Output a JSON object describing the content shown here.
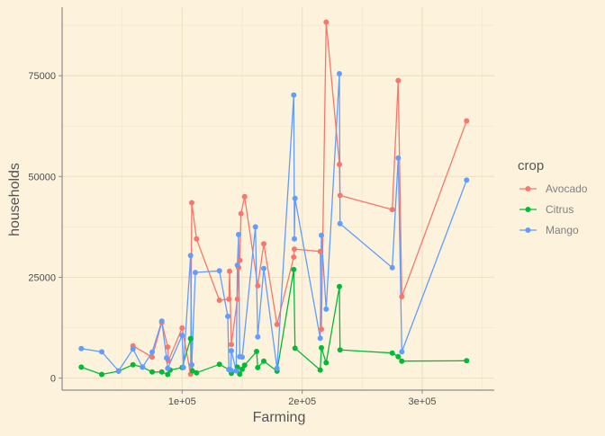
{
  "chart_data": {
    "type": "line",
    "title": "",
    "xlabel": "Farming",
    "ylabel": "households",
    "xlim": [
      0,
      360000
    ],
    "ylim": [
      -3000,
      92000
    ],
    "x_ticks": [
      100000,
      200000,
      300000
    ],
    "x_tick_labels": [
      "1e+05",
      "2e+05",
      "3e+05"
    ],
    "y_ticks": [
      0,
      25000,
      50000,
      75000
    ],
    "y_tick_labels": [
      "0",
      "25000",
      "50000",
      "75000"
    ],
    "grid": true,
    "legend": {
      "title": "crop",
      "position": "right"
    },
    "series": [
      {
        "name": "Avocado",
        "color": "#f8766d",
        "points": [
          [
            59000,
            8000
          ],
          [
            75000,
            5200
          ],
          [
            83000,
            13800
          ],
          [
            88000,
            7700
          ],
          [
            88500,
            4300
          ],
          [
            100000,
            12400
          ],
          [
            107000,
            1000
          ],
          [
            108000,
            43500
          ],
          [
            112000,
            34500
          ],
          [
            131000,
            19300
          ],
          [
            139000,
            19600
          ],
          [
            139500,
            26500
          ],
          [
            141000,
            8300
          ],
          [
            146000,
            19600
          ],
          [
            147000,
            27400
          ],
          [
            148000,
            29200
          ],
          [
            149000,
            40800
          ],
          [
            152000,
            45000
          ],
          [
            163000,
            22900
          ],
          [
            168000,
            33300
          ],
          [
            179000,
            13300
          ],
          [
            193000,
            30000
          ],
          [
            193500,
            32000
          ],
          [
            215000,
            31400
          ],
          [
            216000,
            12100
          ],
          [
            220000,
            88300
          ],
          [
            231000,
            53000
          ],
          [
            231500,
            45300
          ],
          [
            275000,
            41800
          ],
          [
            280000,
            73800
          ],
          [
            283000,
            20200
          ],
          [
            337000,
            63800
          ]
        ]
      },
      {
        "name": "Citrus",
        "color": "#00ba38",
        "points": [
          [
            16000,
            2700
          ],
          [
            33000,
            900
          ],
          [
            47000,
            1700
          ],
          [
            59000,
            3300
          ],
          [
            67000,
            2700
          ],
          [
            75000,
            1500
          ],
          [
            83000,
            1500
          ],
          [
            88000,
            900
          ],
          [
            90000,
            2000
          ],
          [
            100000,
            2600
          ],
          [
            107000,
            9800
          ],
          [
            108500,
            1800
          ],
          [
            112000,
            1300
          ],
          [
            131000,
            3400
          ],
          [
            139000,
            2100
          ],
          [
            141000,
            1200
          ],
          [
            146000,
            2700
          ],
          [
            148000,
            1000
          ],
          [
            150000,
            2200
          ],
          [
            152000,
            3200
          ],
          [
            162000,
            6600
          ],
          [
            163000,
            2600
          ],
          [
            168000,
            4200
          ],
          [
            179000,
            1700
          ],
          [
            193000,
            26900
          ],
          [
            194000,
            7400
          ],
          [
            215000,
            2000
          ],
          [
            216000,
            7500
          ],
          [
            220000,
            3800
          ],
          [
            231000,
            22700
          ],
          [
            231500,
            7000
          ],
          [
            275000,
            6200
          ],
          [
            280000,
            5300
          ],
          [
            283000,
            4200
          ],
          [
            337000,
            4300
          ]
        ]
      },
      {
        "name": "Mango",
        "color": "#619cff",
        "points": [
          [
            16000,
            7300
          ],
          [
            33000,
            6500
          ],
          [
            47000,
            1800
          ],
          [
            59000,
            7200
          ],
          [
            67000,
            2700
          ],
          [
            75000,
            6400
          ],
          [
            83000,
            14100
          ],
          [
            87000,
            5000
          ],
          [
            88000,
            2400
          ],
          [
            100000,
            10600
          ],
          [
            101000,
            2600
          ],
          [
            107000,
            30400
          ],
          [
            108000,
            3300
          ],
          [
            111000,
            26200
          ],
          [
            131000,
            26600
          ],
          [
            138000,
            15300
          ],
          [
            139000,
            2100
          ],
          [
            140500,
            2000
          ],
          [
            141000,
            6800
          ],
          [
            145000,
            1800
          ],
          [
            146000,
            28000
          ],
          [
            147000,
            35600
          ],
          [
            148000,
            5300
          ],
          [
            150000,
            5200
          ],
          [
            161000,
            37500
          ],
          [
            163000,
            10200
          ],
          [
            168000,
            27200
          ],
          [
            179000,
            2400
          ],
          [
            193000,
            70200
          ],
          [
            193500,
            34500
          ],
          [
            194000,
            44600
          ],
          [
            215000,
            9900
          ],
          [
            216000,
            35400
          ],
          [
            220000,
            17100
          ],
          [
            231000,
            75500
          ],
          [
            231500,
            38300
          ],
          [
            275000,
            27400
          ],
          [
            280000,
            54600
          ],
          [
            283000,
            6500
          ],
          [
            337000,
            49100
          ]
        ]
      }
    ]
  }
}
